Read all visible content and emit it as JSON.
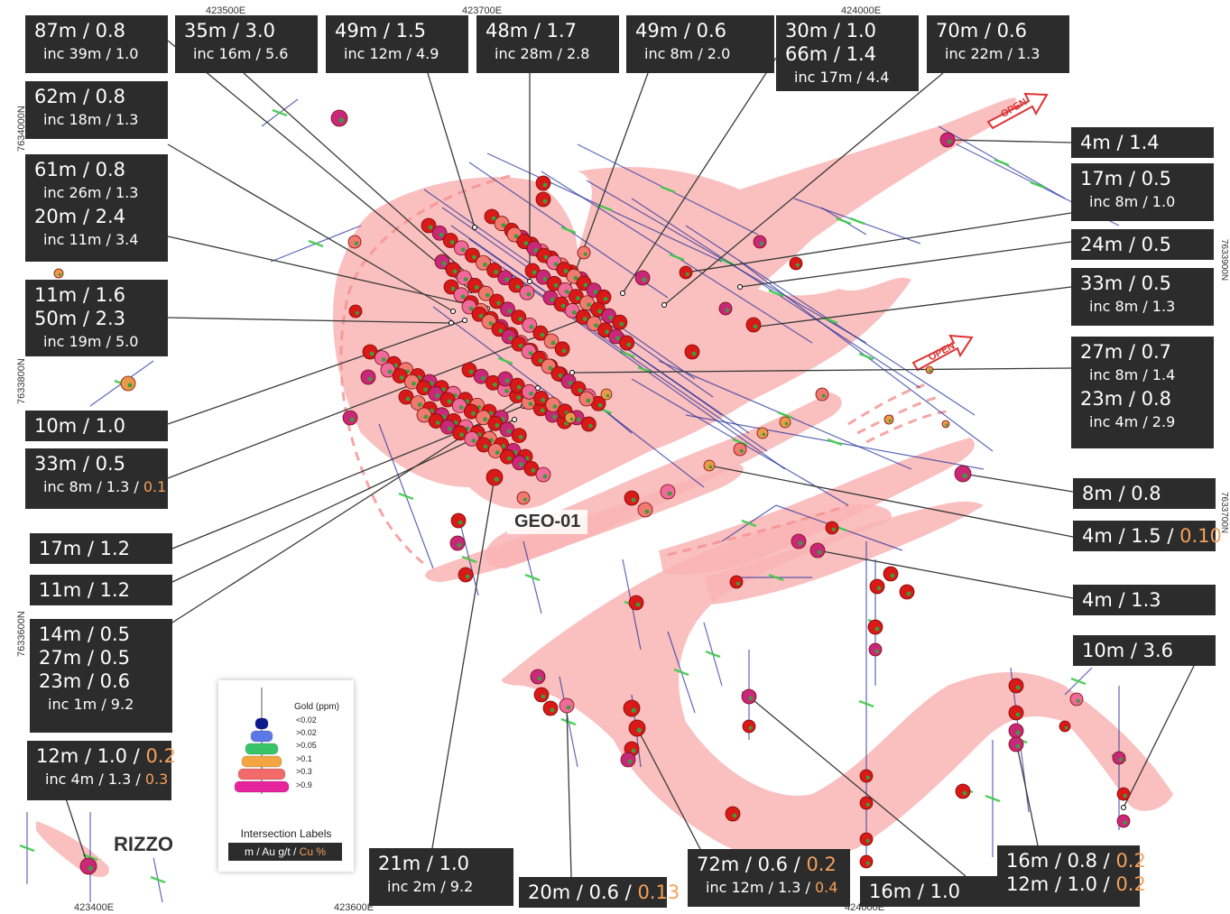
{
  "map_name": "GEO-01",
  "prospect_name": "RIZZO",
  "open_label": "OPEN",
  "coords": {
    "top": [
      "423500E",
      "423700E",
      "424000E"
    ],
    "bottom": [
      "423400E",
      "423600E",
      "424000E"
    ],
    "left": [
      "7634000N",
      "7633800N",
      "7633600N"
    ],
    "right": [
      "7633900N",
      "7633700N"
    ]
  },
  "legend": {
    "title": "Gold (ppm)",
    "classes": [
      "<0.02",
      ">0.02",
      ">0.05",
      ">0.1",
      ">0.3",
      ">0.9"
    ],
    "class_colors": [
      "#0a1a8c",
      "#5a78e6",
      "#39c46a",
      "#f2a540",
      "#f26a6a",
      "#e6249c"
    ],
    "intersection_title": "Intersection Labels",
    "key_main": "m / Au g/t / ",
    "key_cu": "Cu %"
  },
  "labels": [
    {
      "rows": [
        {
          "t": "87m / 0.8"
        },
        {
          "t": "inc 39m / 1.0",
          "s": 1
        }
      ]
    },
    {
      "rows": [
        {
          "t": "35m / 3.0"
        },
        {
          "t": "inc 16m / 5.6",
          "s": 1
        }
      ]
    },
    {
      "rows": [
        {
          "t": "49m / 1.5"
        },
        {
          "t": "inc 12m / 4.9",
          "s": 1
        }
      ]
    },
    {
      "rows": [
        {
          "t": "48m / 1.7"
        },
        {
          "t": "inc 28m / 2.8",
          "s": 1
        }
      ]
    },
    {
      "rows": [
        {
          "t": "49m / 0.6"
        },
        {
          "t": "inc 8m / 2.0",
          "s": 1
        }
      ]
    },
    {
      "rows": [
        {
          "t": "30m / 1.0"
        },
        {
          "t": "66m / 1.4"
        },
        {
          "t": "inc 17m / 4.4",
          "s": 1
        }
      ]
    },
    {
      "rows": [
        {
          "t": "70m / 0.6"
        },
        {
          "t": "inc 22m / 1.3",
          "s": 1
        }
      ]
    },
    {
      "rows": [
        {
          "t": "62m / 0.8"
        },
        {
          "t": "inc 18m / 1.3",
          "s": 1
        }
      ]
    },
    {
      "rows": [
        {
          "t": "61m / 0.8"
        },
        {
          "t": "inc 26m / 1.3",
          "s": 1
        },
        {
          "t": "20m / 2.4"
        },
        {
          "t": "inc 11m / 3.4",
          "s": 1
        }
      ]
    },
    {
      "rows": [
        {
          "t": "11m / 1.6"
        },
        {
          "t": "50m / 2.3"
        },
        {
          "t": "inc 19m / 5.0",
          "s": 1
        }
      ]
    },
    {
      "rows": [
        {
          "t": "10m / 1.0"
        }
      ]
    },
    {
      "rows": [
        {
          "t": "33m / 0.5"
        },
        {
          "t": "inc 8m / 1.3 / ",
          "cu": "0.1",
          "s": 1
        }
      ]
    },
    {
      "rows": [
        {
          "t": "17m / 1.2"
        }
      ]
    },
    {
      "rows": [
        {
          "t": "11m / 1.2"
        }
      ]
    },
    {
      "rows": [
        {
          "t": "14m / 0.5"
        },
        {
          "t": "27m / 0.5"
        },
        {
          "t": "23m / 0.6"
        },
        {
          "t": "inc 1m / 9.2",
          "s": 1
        }
      ]
    },
    {
      "rows": [
        {
          "t": "12m / 1.0 / ",
          "cu": "0.2"
        },
        {
          "t": "inc 4m / 1.3 / ",
          "cu": "0.3",
          "s": 1
        }
      ]
    },
    {
      "rows": [
        {
          "t": "4m / 1.4"
        }
      ]
    },
    {
      "rows": [
        {
          "t": "17m / 0.5"
        },
        {
          "t": "inc 8m / 1.0",
          "s": 1
        }
      ]
    },
    {
      "rows": [
        {
          "t": "24m / 0.5"
        }
      ]
    },
    {
      "rows": [
        {
          "t": "33m / 0.5"
        },
        {
          "t": "inc 8m / 1.3",
          "s": 1
        }
      ]
    },
    {
      "rows": [
        {
          "t": "27m / 0.7"
        },
        {
          "t": "inc 8m / 1.4",
          "s": 1
        },
        {
          "t": "23m / 0.8"
        },
        {
          "t": "inc 4m / 2.9",
          "s": 1
        }
      ]
    },
    {
      "rows": [
        {
          "t": "8m / 0.8"
        }
      ]
    },
    {
      "rows": [
        {
          "t": "4m / 1.5 / ",
          "cu": "0.10"
        }
      ]
    },
    {
      "rows": [
        {
          "t": "4m / 1.3"
        }
      ]
    },
    {
      "rows": [
        {
          "t": "10m / 3.6"
        }
      ]
    },
    {
      "rows": [
        {
          "t": "21m / 1.0"
        },
        {
          "t": "inc 2m / 9.2",
          "s": 1
        }
      ]
    },
    {
      "rows": [
        {
          "t": "20m / 0.6 / ",
          "cu": "0.13"
        }
      ]
    },
    {
      "rows": [
        {
          "t": "72m / 0.6 / ",
          "cu": "0.2"
        },
        {
          "t": "inc 12m / 1.3 / ",
          "cu": "0.4",
          "s": 1
        }
      ]
    },
    {
      "rows": [
        {
          "t": "16m / 1.0"
        }
      ]
    },
    {
      "rows": [
        {
          "t": "16m / 0.8 / ",
          "cu": "0.2"
        },
        {
          "t": "12m / 1.0 / ",
          "cu": "0.2"
        }
      ]
    }
  ]
}
